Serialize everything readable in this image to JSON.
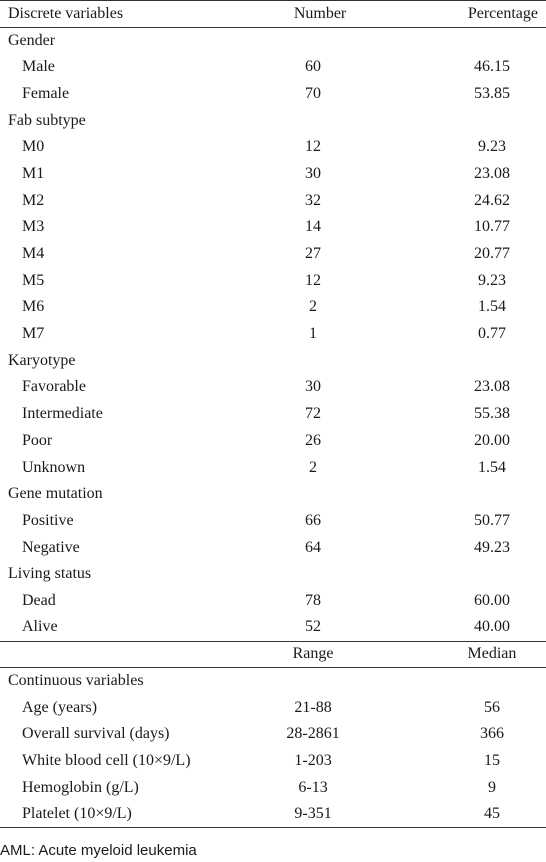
{
  "discrete_header": {
    "label": "Discrete variables",
    "col_a": "Number",
    "col_b": "Percentage"
  },
  "discrete_groups": [
    {
      "title": "Gender",
      "rows": [
        {
          "label": "Male",
          "a": "60",
          "b": "46.15"
        },
        {
          "label": "Female",
          "a": "70",
          "b": "53.85"
        }
      ]
    },
    {
      "title": "Fab subtype",
      "rows": [
        {
          "label": "M0",
          "a": "12",
          "b": "9.23"
        },
        {
          "label": "M1",
          "a": "30",
          "b": "23.08"
        },
        {
          "label": "M2",
          "a": "32",
          "b": "24.62"
        },
        {
          "label": "M3",
          "a": "14",
          "b": "10.77"
        },
        {
          "label": "M4",
          "a": "27",
          "b": "20.77"
        },
        {
          "label": "M5",
          "a": "12",
          "b": "9.23"
        },
        {
          "label": "M6",
          "a": "2",
          "b": "1.54"
        },
        {
          "label": "M7",
          "a": "1",
          "b": "0.77"
        }
      ]
    },
    {
      "title": "Karyotype",
      "rows": [
        {
          "label": "Favorable",
          "a": "30",
          "b": "23.08"
        },
        {
          "label": "Intermediate",
          "a": "72",
          "b": "55.38"
        },
        {
          "label": "Poor",
          "a": "26",
          "b": "20.00"
        },
        {
          "label": "Unknown",
          "a": "2",
          "b": "1.54"
        }
      ]
    },
    {
      "title": "Gene mutation",
      "rows": [
        {
          "label": "Positive",
          "a": "66",
          "b": "50.77"
        },
        {
          "label": "Negative",
          "a": "64",
          "b": "49.23"
        }
      ]
    },
    {
      "title": "Living status",
      "rows": [
        {
          "label": "Dead",
          "a": "78",
          "b": "60.00"
        },
        {
          "label": "Alive",
          "a": "52",
          "b": "40.00"
        }
      ]
    }
  ],
  "continuous_header": {
    "col_a": "Range",
    "col_b": "Median"
  },
  "continuous_group": {
    "title": "Continuous variables",
    "rows": [
      {
        "label": "Age (years)",
        "a": "21-88",
        "b": "56"
      },
      {
        "label": "Overall survival (days)",
        "a": "28-2861",
        "b": "366"
      },
      {
        "label": "White blood cell (10×9/L)",
        "a": "1-203",
        "b": "15"
      },
      {
        "label": "Hemoglobin (g/L)",
        "a": "6-13",
        "b": "9"
      },
      {
        "label": "Platelet (10×9/L)",
        "a": "9-351",
        "b": "45"
      }
    ]
  },
  "footnote": "AML: Acute myeloid leukemia"
}
